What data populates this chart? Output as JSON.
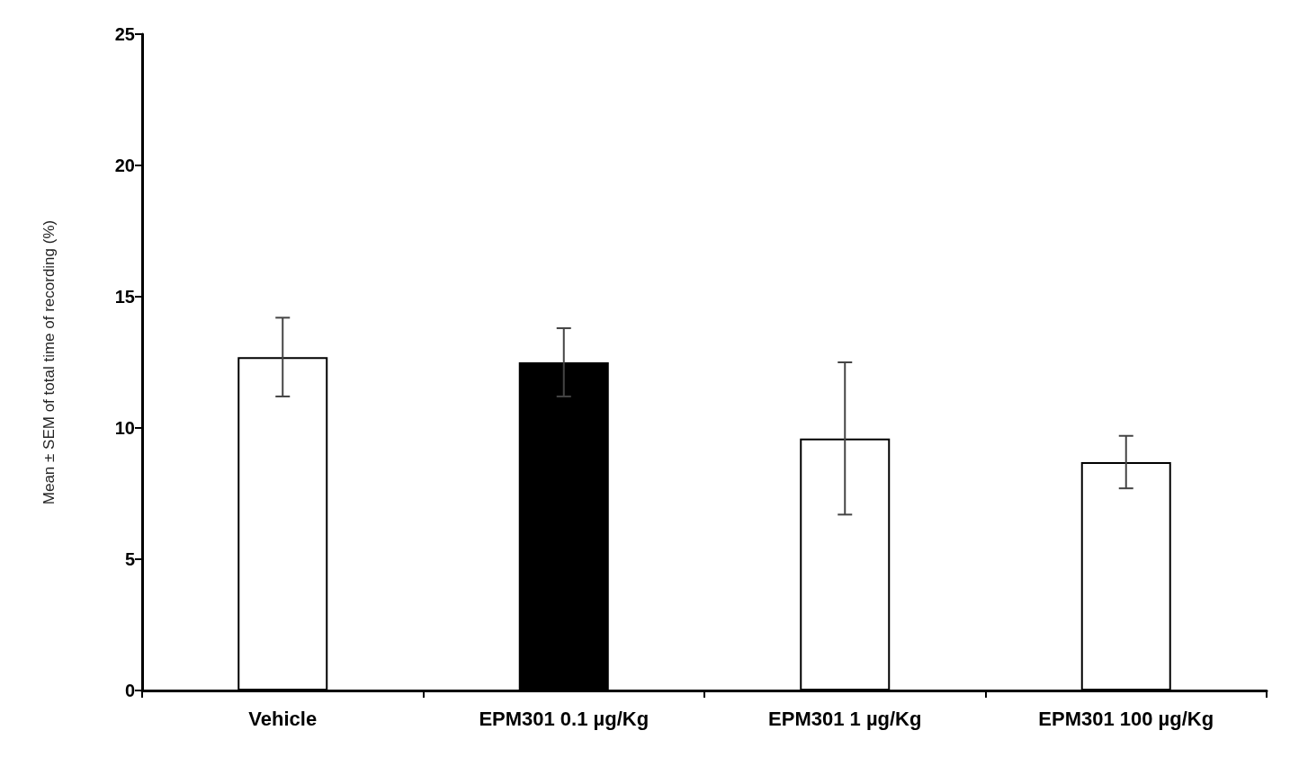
{
  "chart_data": {
    "type": "bar",
    "ylabel": "Mean ± SEM of total time of recording (%)",
    "categories": [
      "Vehicle",
      "EPM301 0.1 µg/Kg",
      "EPM301 1 µg/Kg",
      "EPM301 100 µg/Kg"
    ],
    "values": [
      12.7,
      12.5,
      9.6,
      8.7
    ],
    "errors": [
      1.5,
      1.3,
      2.9,
      1.0
    ],
    "colors": [
      "#ffffff",
      "#000000",
      "#ffffff",
      "#ffffff"
    ],
    "ylim": [
      0,
      25
    ],
    "yticks": [
      0,
      5,
      10,
      15,
      20,
      25
    ],
    "grid": false
  }
}
